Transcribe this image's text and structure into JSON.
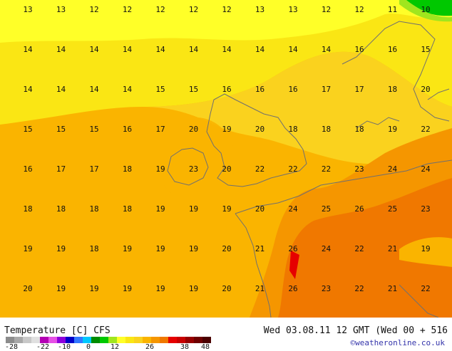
{
  "footer": {
    "title": "Temperature [C] CFS",
    "date": "Wed 03.08.11 12 GMT (Wed 00 + 516",
    "credit": "©weatheronline.co.uk"
  },
  "legend": {
    "ticks": [
      "-28",
      "-22",
      "-10",
      "0",
      "12",
      "26",
      "38",
      "48"
    ],
    "colors": [
      "#8c8c8c",
      "#a8a8a8",
      "#c8c8c8",
      "#e0e0e0",
      "#b400b4",
      "#e650e6",
      "#8c00dc",
      "#0000c8",
      "#3278ff",
      "#00c8ff",
      "#008c00",
      "#00c800",
      "#a0e61e",
      "#ffff28",
      "#fae614",
      "#fad21e",
      "#fab400",
      "#f59600",
      "#f07800",
      "#e60000",
      "#c80000",
      "#960000",
      "#6e0000",
      "#4b0000"
    ]
  },
  "map": {
    "grid_rows": [
      [
        "13",
        "13",
        "12",
        "12",
        "12",
        "12",
        "12",
        "13",
        "13",
        "12",
        "12",
        "11",
        "10"
      ],
      [
        "14",
        "14",
        "14",
        "14",
        "14",
        "14",
        "14",
        "14",
        "14",
        "14",
        "16",
        "16",
        "15"
      ],
      [
        "14",
        "14",
        "14",
        "14",
        "15",
        "15",
        "16",
        "16",
        "16",
        "17",
        "17",
        "18",
        "20"
      ],
      [
        "15",
        "15",
        "15",
        "16",
        "17",
        "20",
        "19",
        "20",
        "18",
        "18",
        "18",
        "19",
        "22"
      ],
      [
        "16",
        "17",
        "17",
        "18",
        "19",
        "23",
        "20",
        "22",
        "22",
        "22",
        "23",
        "24",
        "24"
      ],
      [
        "18",
        "18",
        "18",
        "18",
        "19",
        "19",
        "19",
        "20",
        "24",
        "25",
        "26",
        "25",
        "23"
      ],
      [
        "19",
        "19",
        "18",
        "19",
        "19",
        "19",
        "20",
        "21",
        "26",
        "24",
        "22",
        "21",
        "19"
      ],
      [
        "20",
        "19",
        "19",
        "19",
        "19",
        "19",
        "20",
        "21",
        "26",
        "23",
        "22",
        "21",
        "22"
      ]
    ]
  }
}
